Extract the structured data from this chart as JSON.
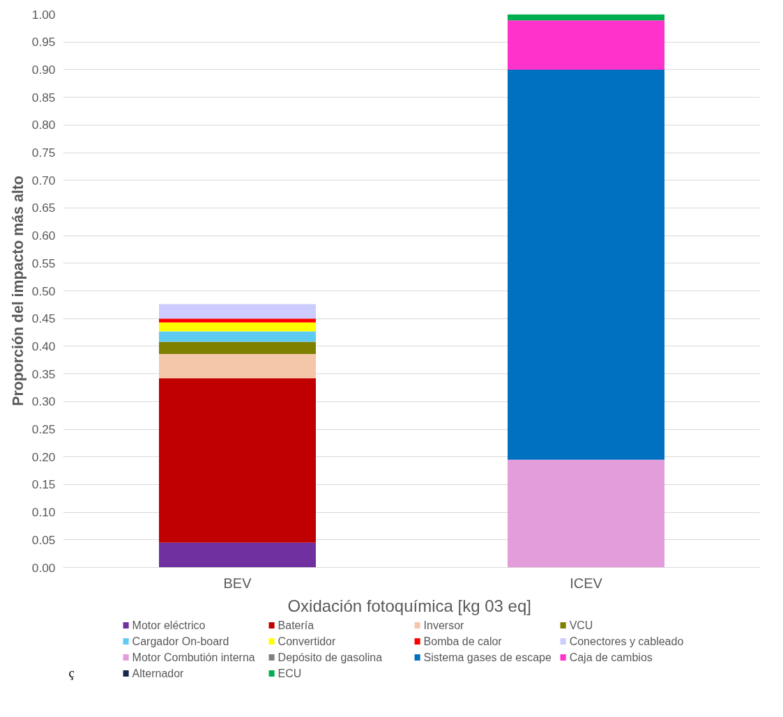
{
  "chart_data": {
    "type": "bar",
    "stacked": true,
    "xlabel": "Oxidación fotoquímica  [kg 03 eq]",
    "ylabel": "Proporción del impacto más alto",
    "categories": [
      "BEV",
      "ICEV"
    ],
    "series": [
      {
        "name": "Motor eléctrico",
        "color": "#7030a0",
        "values": [
          0.045,
          null
        ]
      },
      {
        "name": "Batería",
        "color": "#c00000",
        "values": [
          0.297,
          null
        ]
      },
      {
        "name": "Inversor",
        "color": "#f4c7ab",
        "values": [
          0.044,
          null
        ]
      },
      {
        "name": "VCU",
        "color": "#808000",
        "values": [
          0.022,
          null
        ]
      },
      {
        "name": "Cargador On-board",
        "color": "#5ecbf2",
        "values": [
          0.019,
          null
        ]
      },
      {
        "name": "Convertidor",
        "color": "#ffff00",
        "values": [
          0.016,
          null
        ]
      },
      {
        "name": "Bomba de calor",
        "color": "#ff0000",
        "values": [
          0.007,
          null
        ]
      },
      {
        "name": "Conectores y cableado",
        "color": "#ccccff",
        "values": [
          0.026,
          null
        ]
      },
      {
        "name": "Motor Combutión interna",
        "color": "#e39ddb",
        "values": [
          null,
          0.195
        ]
      },
      {
        "name": "Depósito de gasolina",
        "color": "#808080",
        "values": [
          null,
          null
        ]
      },
      {
        "name": "Sistema gases de escape",
        "color": "#0070c0",
        "values": [
          null,
          0.705
        ]
      },
      {
        "name": "Caja de cambios",
        "color": "#ff33cc",
        "values": [
          null,
          0.089
        ]
      },
      {
        "name": "Alternador",
        "color": "#13294b",
        "values": [
          null,
          null
        ]
      },
      {
        "name": "ECU",
        "color": "#00b050",
        "values": [
          null,
          0.011
        ]
      }
    ],
    "ylim": [
      0,
      1.0
    ],
    "yticks": [
      {
        "value": 0,
        "label": "0.00"
      },
      {
        "value": 0.05,
        "label": "0.05"
      },
      {
        "value": 0.1,
        "label": "0.10"
      },
      {
        "value": 0.15,
        "label": "0.15"
      },
      {
        "value": 0.2,
        "label": "0.20"
      },
      {
        "value": 0.25,
        "label": "0.25"
      },
      {
        "value": 0.3,
        "label": "0.30"
      },
      {
        "value": 0.35,
        "label": "0.35"
      },
      {
        "value": 0.4,
        "label": "0.40"
      },
      {
        "value": 0.45,
        "label": "0.45"
      },
      {
        "value": 0.5,
        "label": "0.50"
      },
      {
        "value": 0.55,
        "label": "0.55"
      },
      {
        "value": 0.6,
        "label": "0.60"
      },
      {
        "value": 0.65,
        "label": "0.65"
      },
      {
        "value": 0.7,
        "label": "0.70"
      },
      {
        "value": 0.75,
        "label": "0.75"
      },
      {
        "value": 0.8,
        "label": "0.80"
      },
      {
        "value": 0.85,
        "label": "0.85"
      },
      {
        "value": 0.9,
        "label": "0.90"
      },
      {
        "value": 0.95,
        "label": "0.95"
      },
      {
        "value": 1.0,
        "label": "1.00"
      }
    ],
    "grid": "y",
    "legend": "bottom",
    "annotations": [
      "ç"
    ]
  }
}
